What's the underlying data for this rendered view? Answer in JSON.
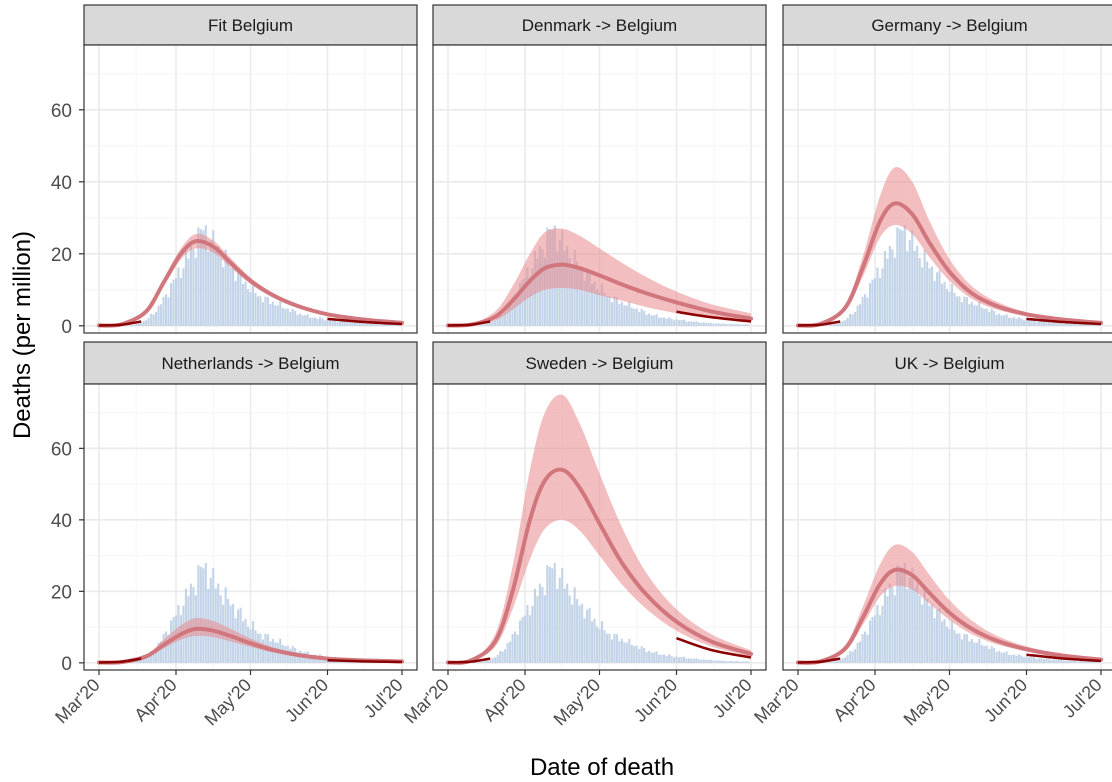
{
  "figure": {
    "ylabel": "Deaths (per million)",
    "xlabel": "Date of death",
    "y_ticks": [
      "0",
      "20",
      "40",
      "60"
    ],
    "x_ticks": [
      "Mar'20",
      "Apr'20",
      "May'20",
      "Jun'20",
      "Jul'20"
    ]
  },
  "colors": {
    "strip_fill": "#d9d9d9",
    "panel_border": "#333333",
    "grid_major": "#ebebeb",
    "grid_minor": "#f5f5f5",
    "bars": "#b9cde4",
    "band": "#e8888d",
    "fit_line": "#d0767c",
    "data_line": "#8b0000"
  },
  "chart_data": {
    "type": "line",
    "layout": "facet grid 2x3, shared axes",
    "x_type": "date",
    "xlim": [
      "2020-03-01",
      "2020-07-01"
    ],
    "ylim": [
      -2,
      78
    ],
    "x_ticks": [
      "2020-03-01",
      "2020-04-01",
      "2020-05-01",
      "2020-06-01",
      "2020-07-01"
    ],
    "y_ticks": [
      0,
      20,
      40,
      60
    ],
    "grid": true,
    "observed_bars": {
      "description": "Belgium daily deaths per million (same in all panels)",
      "x": [
        "2020-03-10",
        "2020-03-15",
        "2020-03-20",
        "2020-03-25",
        "2020-03-30",
        "2020-04-04",
        "2020-04-09",
        "2020-04-12",
        "2020-04-15",
        "2020-04-20",
        "2020-04-25",
        "2020-04-30",
        "2020-05-05",
        "2020-05-10",
        "2020-05-15",
        "2020-05-20",
        "2020-05-25",
        "2020-05-31",
        "2020-06-07",
        "2020-06-14",
        "2020-06-21",
        "2020-06-28"
      ],
      "y": [
        0,
        0.3,
        1.5,
        5,
        11,
        17,
        23,
        27,
        24,
        19,
        15,
        11,
        8,
        6.5,
        5,
        3.5,
        2.5,
        1.8,
        1.2,
        0.8,
        0.5,
        0.4
      ]
    },
    "panels": [
      {
        "title": "Fit Belgium",
        "x": [
          "2020-03-01",
          "2020-03-10",
          "2020-03-20",
          "2020-03-27",
          "2020-04-03",
          "2020-04-09",
          "2020-04-16",
          "2020-04-23",
          "2020-05-01",
          "2020-05-10",
          "2020-05-20",
          "2020-06-01",
          "2020-06-15",
          "2020-07-01"
        ],
        "fit": [
          0.1,
          0.4,
          4,
          12,
          20,
          23.5,
          22,
          17.5,
          12.5,
          8.5,
          5.5,
          3.2,
          1.8,
          0.8
        ],
        "lower": [
          0.1,
          0.35,
          3.6,
          11,
          18.5,
          21.5,
          20.3,
          16.2,
          11.6,
          7.9,
          5.1,
          3.0,
          1.6,
          0.7
        ],
        "upper": [
          0.1,
          0.45,
          4.4,
          13,
          21.5,
          25.5,
          23.7,
          18.8,
          13.4,
          9.1,
          5.9,
          3.4,
          2.0,
          0.9
        ]
      },
      {
        "title": "Denmark -> Belgium",
        "x": [
          "2020-03-01",
          "2020-03-10",
          "2020-03-20",
          "2020-03-27",
          "2020-04-03",
          "2020-04-09",
          "2020-04-16",
          "2020-04-23",
          "2020-05-01",
          "2020-05-10",
          "2020-05-20",
          "2020-06-01",
          "2020-06-15",
          "2020-07-01"
        ],
        "fit": [
          0.1,
          0.3,
          2.5,
          7,
          12.5,
          16,
          17,
          16,
          14,
          11.5,
          9,
          6.5,
          4,
          2
        ],
        "lower": [
          0.1,
          0.2,
          1.5,
          4.5,
          8,
          10,
          10.5,
          10,
          8.5,
          7,
          5.2,
          3.5,
          2,
          0.8
        ],
        "upper": [
          0.1,
          0.5,
          4,
          11,
          20,
          26,
          27,
          25,
          21.5,
          17.5,
          13.5,
          9.5,
          6,
          3.5
        ]
      },
      {
        "title": "Germany -> Belgium",
        "x": [
          "2020-03-01",
          "2020-03-10",
          "2020-03-20",
          "2020-03-27",
          "2020-04-03",
          "2020-04-09",
          "2020-04-16",
          "2020-04-23",
          "2020-05-01",
          "2020-05-10",
          "2020-05-20",
          "2020-06-01",
          "2020-06-15",
          "2020-07-01"
        ],
        "fit": [
          0.1,
          0.5,
          5,
          16,
          29,
          34,
          31,
          23,
          15,
          9,
          5.5,
          3.2,
          1.8,
          0.8
        ],
        "lower": [
          0.1,
          0.45,
          4.2,
          13.5,
          24.5,
          28,
          25.5,
          19,
          12.5,
          7.5,
          4.5,
          2.7,
          1.5,
          0.6
        ],
        "upper": [
          0.1,
          0.6,
          6,
          19,
          36,
          44,
          40,
          29,
          18.5,
          11,
          6.7,
          3.8,
          2.1,
          1.0
        ]
      },
      {
        "title": "Netherlands -> Belgium",
        "x": [
          "2020-03-01",
          "2020-03-10",
          "2020-03-20",
          "2020-03-27",
          "2020-04-03",
          "2020-04-09",
          "2020-04-16",
          "2020-04-23",
          "2020-05-01",
          "2020-05-10",
          "2020-05-20",
          "2020-06-01",
          "2020-06-15",
          "2020-07-01"
        ],
        "fit": [
          0.1,
          0.2,
          1.8,
          5,
          8,
          9.5,
          9,
          7.5,
          5.5,
          3.6,
          2.2,
          1.2,
          0.7,
          0.4
        ],
        "lower": [
          0.1,
          0.15,
          1.4,
          4,
          6.5,
          7.5,
          7.2,
          6,
          4.5,
          2.9,
          1.8,
          1.0,
          0.5,
          0.3
        ],
        "upper": [
          0.1,
          0.25,
          2.3,
          6.5,
          10.5,
          12.5,
          11.7,
          9.5,
          6.8,
          4.4,
          2.7,
          1.5,
          0.9,
          0.5
        ]
      },
      {
        "title": "Sweden -> Belgium",
        "x": [
          "2020-03-01",
          "2020-03-10",
          "2020-03-20",
          "2020-03-27",
          "2020-04-03",
          "2020-04-09",
          "2020-04-16",
          "2020-04-23",
          "2020-05-01",
          "2020-05-10",
          "2020-05-20",
          "2020-06-01",
          "2020-06-15",
          "2020-07-01"
        ],
        "fit": [
          0.1,
          0.6,
          6,
          20,
          40,
          51,
          54,
          49,
          39,
          28,
          19,
          11.5,
          6,
          2.5
        ],
        "lower": [
          0.1,
          0.5,
          4.5,
          15,
          29,
          37.5,
          40,
          37,
          30,
          22,
          15,
          9,
          4.6,
          1.8
        ],
        "upper": [
          0.1,
          0.7,
          8,
          27,
          54,
          70,
          75,
          67,
          53,
          38,
          25,
          15,
          8,
          3.5
        ]
      },
      {
        "title": "UK -> Belgium",
        "x": [
          "2020-03-01",
          "2020-03-10",
          "2020-03-20",
          "2020-03-27",
          "2020-04-03",
          "2020-04-09",
          "2020-04-16",
          "2020-04-23",
          "2020-05-01",
          "2020-05-10",
          "2020-05-20",
          "2020-06-01",
          "2020-06-15",
          "2020-07-01"
        ],
        "fit": [
          0.1,
          0.4,
          4,
          12.5,
          22,
          26,
          24.5,
          19.5,
          14,
          9.5,
          6.2,
          3.8,
          2.1,
          0.9
        ],
        "lower": [
          0.1,
          0.35,
          3.3,
          10.5,
          18.5,
          21.5,
          20.5,
          16.5,
          12,
          8,
          5.2,
          3.2,
          1.7,
          0.7
        ],
        "upper": [
          0.1,
          0.5,
          5,
          15.5,
          27.5,
          33,
          31,
          24.5,
          17.5,
          11.8,
          7.6,
          4.6,
          2.5,
          1.1
        ]
      }
    ]
  }
}
